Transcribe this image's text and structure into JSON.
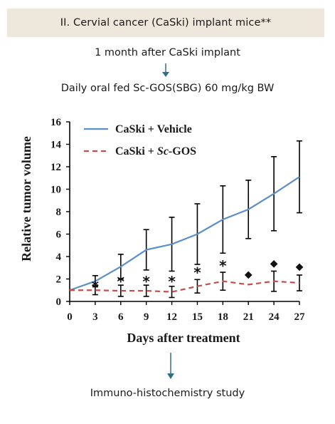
{
  "header": {
    "title": "II. Cervial cancer (CaSki) implant  mice**"
  },
  "flow": {
    "step1": "1 month after CaSki implant",
    "step2": "Daily oral fed Sc-GOS(SBG) 60 mg/kg BW",
    "step3": "Immuno-histochemistry study"
  },
  "colors": {
    "header_bg": "#eee7dc",
    "arrow": "#2f6f86",
    "vehicle": "#5b8fc7",
    "gos": "#c0504d"
  },
  "chart_data": {
    "type": "line",
    "title": "",
    "xlabel": "Days after treatment",
    "ylabel": "Relative tumor volume",
    "x": [
      0,
      3,
      6,
      9,
      12,
      15,
      18,
      21,
      24,
      27
    ],
    "xlim": [
      0,
      27
    ],
    "ylim": [
      0,
      16
    ],
    "xticks": [
      "0",
      "3",
      "6",
      "9",
      "12",
      "15",
      "18",
      "21",
      "24",
      "27"
    ],
    "yticks": [
      "0",
      "2",
      "4",
      "6",
      "8",
      "10",
      "12",
      "14",
      "16"
    ],
    "legend_position": "top-left",
    "series": [
      {
        "name": "CaSki + Vehicle",
        "name_prefix": "CaSki + ",
        "name_italic": "",
        "name_suffix": "Vehicle",
        "style": "solid",
        "values": [
          1.0,
          1.8,
          3.1,
          4.6,
          5.1,
          6.0,
          7.3,
          8.2,
          9.6,
          11.1
        ],
        "error": [
          0,
          0.5,
          1.1,
          1.8,
          2.4,
          2.7,
          3.0,
          2.6,
          3.3,
          3.2
        ]
      },
      {
        "name": "CaSki + Sc-GOS",
        "name_prefix": "CaSki + ",
        "name_italic": "Sc",
        "name_suffix": "-GOS",
        "style": "dashed",
        "values": [
          1.0,
          1.0,
          0.95,
          0.95,
          0.85,
          1.35,
          1.8,
          1.5,
          1.8,
          1.65
        ],
        "error": [
          0,
          0.4,
          0.5,
          0.5,
          0.5,
          0.6,
          0.8,
          0,
          0.9,
          0.7
        ]
      }
    ],
    "markers": [
      {
        "x": 3,
        "y": 1.3,
        "symbol": "*"
      },
      {
        "x": 6,
        "y": 1.7,
        "symbol": "*"
      },
      {
        "x": 9,
        "y": 1.7,
        "symbol": "*"
      },
      {
        "x": 12,
        "y": 1.7,
        "symbol": "*"
      },
      {
        "x": 15,
        "y": 2.5,
        "symbol": "*"
      },
      {
        "x": 18,
        "y": 3.1,
        "symbol": "*"
      },
      {
        "x": 21,
        "y": 2.5,
        "symbol": "◆"
      },
      {
        "x": 24,
        "y": 3.5,
        "symbol": "◆"
      },
      {
        "x": 27,
        "y": 3.2,
        "symbol": "◆"
      }
    ]
  }
}
